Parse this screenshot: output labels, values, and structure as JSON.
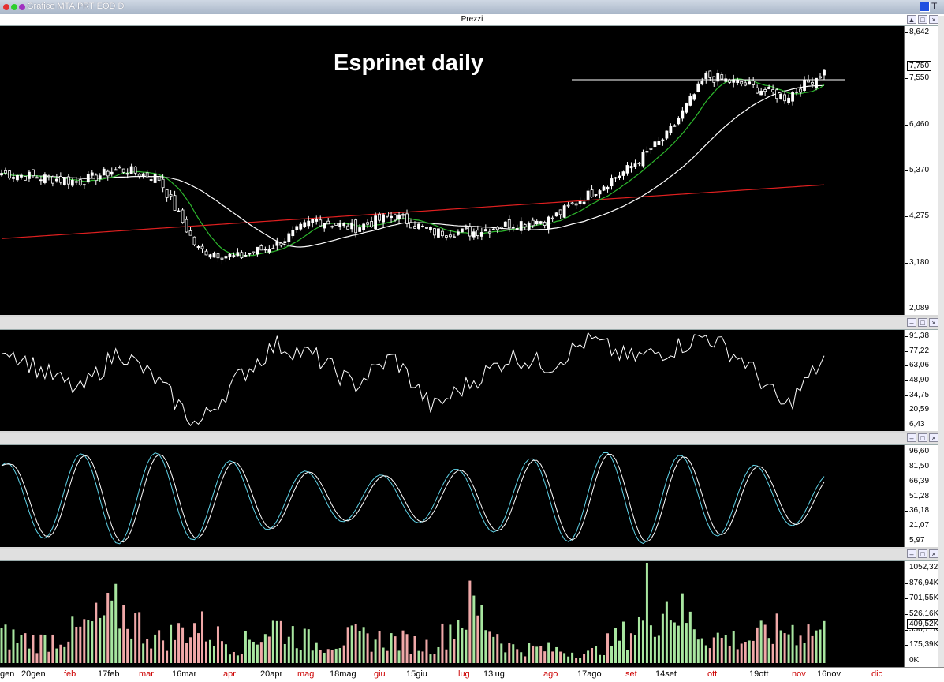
{
  "window": {
    "title": "Grafico MTA.PRT EOD D",
    "corner_text": "T"
  },
  "price_panel": {
    "header": "Prezzi",
    "title": "Esprinet daily",
    "y_ticks": [
      "8,642",
      "7,550",
      "6,460",
      "5,370",
      "4,275",
      "3,180",
      "2,089"
    ],
    "last_price": "7,750"
  },
  "osc1_panel": {
    "y_ticks": [
      "91,38",
      "77,22",
      "63,06",
      "48,90",
      "34,75",
      "20,59",
      "6,43"
    ]
  },
  "osc2_panel": {
    "y_ticks": [
      "96,60",
      "81,50",
      "66,39",
      "51,28",
      "36,18",
      "21,07",
      "5,97"
    ]
  },
  "volume_panel": {
    "y_ticks": [
      "1052,32K",
      "876,94K",
      "701,55K",
      "526,16K",
      "350,77K",
      "175,39K",
      "0K"
    ],
    "last_volume": "409,52K"
  },
  "date_axis": [
    {
      "label": "gen",
      "color": "#000000"
    },
    {
      "label": "20gen",
      "color": "#000000"
    },
    {
      "label": "feb",
      "color": "#cc0000"
    },
    {
      "label": "17feb",
      "color": "#000000"
    },
    {
      "label": "mar",
      "color": "#cc0000"
    },
    {
      "label": "16mar",
      "color": "#000000"
    },
    {
      "label": "apr",
      "color": "#cc0000"
    },
    {
      "label": "20apr",
      "color": "#000000"
    },
    {
      "label": "mag",
      "color": "#cc0000"
    },
    {
      "label": "18mag",
      "color": "#000000"
    },
    {
      "label": "giu",
      "color": "#cc0000"
    },
    {
      "label": "15giu",
      "color": "#000000"
    },
    {
      "label": "lug",
      "color": "#cc0000"
    },
    {
      "label": "13lug",
      "color": "#000000"
    },
    {
      "label": "ago",
      "color": "#cc0000"
    },
    {
      "label": "17ago",
      "color": "#000000"
    },
    {
      "label": "set",
      "color": "#cc0000"
    },
    {
      "label": "14set",
      "color": "#000000"
    },
    {
      "label": "ott",
      "color": "#cc0000"
    },
    {
      "label": "19ott",
      "color": "#000000"
    },
    {
      "label": "nov",
      "color": "#cc0000"
    },
    {
      "label": "16nov",
      "color": "#000000"
    },
    {
      "label": "dic",
      "color": "#cc0000"
    }
  ],
  "colors": {
    "sma_short": "#2db82d",
    "sma_mid": "#ffffff",
    "sma_long": "#e02020",
    "stoch_k": "#5fd3e8",
    "vol_up": "#a8e6a0",
    "vol_down": "#f0a8a8"
  },
  "chart_data": [
    {
      "type": "line",
      "title": "Esprinet daily",
      "ylabel": "Prezzi",
      "ylim": [
        2.089,
        8.642
      ],
      "x": [
        "gen",
        "20gen",
        "feb",
        "17feb",
        "mar",
        "16mar",
        "apr",
        "20apr",
        "mag",
        "18mag",
        "giu",
        "15giu",
        "lug",
        "13lug",
        "ago",
        "17ago",
        "set",
        "14set",
        "ott",
        "19ott",
        "nov",
        "16nov"
      ],
      "series": [
        {
          "values": [
            5.3,
            5.2,
            5.1,
            5.4,
            5.2,
            3.5,
            3.3,
            3.6,
            4.2,
            4.0,
            4.3,
            3.9,
            3.9,
            4.1,
            4.2,
            4.8,
            5.4,
            6.2,
            7.6,
            7.4,
            7.1,
            7.7
          ]
        }
      ]
    },
    {
      "type": "line",
      "ylim": [
        6.43,
        91.38
      ],
      "series": [
        {
          "values": [
            80,
            58,
            40,
            75,
            48,
            10,
            50,
            80,
            70,
            45,
            70,
            25,
            48,
            70,
            62,
            85,
            68,
            75,
            88,
            65,
            25,
            68
          ]
        }
      ]
    },
    {
      "type": "line",
      "ylim": [
        5.97,
        96.6
      ],
      "series": [
        {
          "values": [
            70,
            35,
            80,
            45,
            55,
            10,
            85,
            70,
            40,
            75,
            45,
            15,
            80,
            60,
            70,
            85,
            35,
            80,
            75,
            40,
            30,
            45
          ]
        }
      ]
    },
    {
      "type": "bar",
      "ylim": [
        0,
        1052.32
      ],
      "series": [
        {
          "values": [
            350,
            280,
            420,
            700,
            300,
            500,
            200,
            500,
            250,
            330,
            300,
            220,
            750,
            200,
            180,
            120,
            400,
            800,
            350,
            300,
            450,
            409.52
          ]
        }
      ]
    }
  ]
}
